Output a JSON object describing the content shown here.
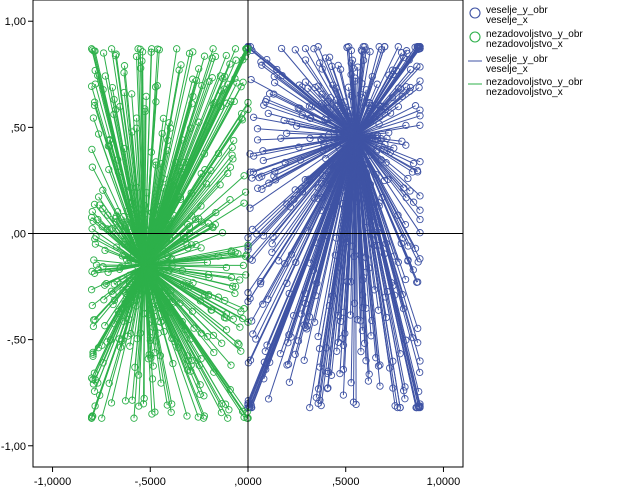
{
  "chart_data": {
    "type": "scatter",
    "xlim": [
      -1.1,
      1.1
    ],
    "ylim": [
      -1.1,
      1.1
    ],
    "x_ticks": [
      "-1,0000",
      "-,5000",
      ",0000",
      ",5000",
      "1,0000"
    ],
    "y_ticks": [
      "1,00",
      ",50",
      ",00",
      "-,50",
      "-1,00"
    ],
    "x_tick_values": [
      -1.0,
      -0.5,
      0.0,
      0.5,
      1.0
    ],
    "y_tick_values": [
      1.0,
      0.5,
      0.0,
      -0.5,
      -1.0
    ],
    "reference_lines": {
      "x": 0.0,
      "y": 0.0
    },
    "grid": false,
    "legend_position": "top-right",
    "series": [
      {
        "name": "veselje_y_obr veselje_x",
        "name_lines": [
          "veselje_y_obr",
          "veselje_x"
        ],
        "marker": "circle-open",
        "color": "#3F53A4",
        "centroid": [
          0.55,
          0.46
        ],
        "x_range": [
          0.0,
          0.88
        ],
        "y_range": [
          -0.82,
          0.88
        ],
        "point_count": 520
      },
      {
        "name": "nezadovoljstvo_y_obr nezadovoljstvo_x",
        "name_lines": [
          "nezadovoljstvo_y_obr",
          "nezadovoljstvo_x"
        ],
        "marker": "circle-open",
        "color": "#2DB04A",
        "centroid": [
          -0.53,
          -0.15
        ],
        "x_range": [
          -0.8,
          0.0
        ],
        "y_range": [
          -0.87,
          0.87
        ],
        "point_count": 520
      }
    ],
    "line_series": [
      {
        "name": "veselje_y_obr veselje_x",
        "name_lines": [
          "veselje_y_obr",
          "veselje_x"
        ],
        "color": "#3F53A4",
        "style": "star-from-centroid"
      },
      {
        "name": "nezadovoljstvo_y_obr nezadovoljstvo_x",
        "name_lines": [
          "nezadovoljstvo_y_obr",
          "nezadovoljstvo_x"
        ],
        "color": "#2DB04A",
        "style": "star-from-centroid"
      }
    ]
  }
}
